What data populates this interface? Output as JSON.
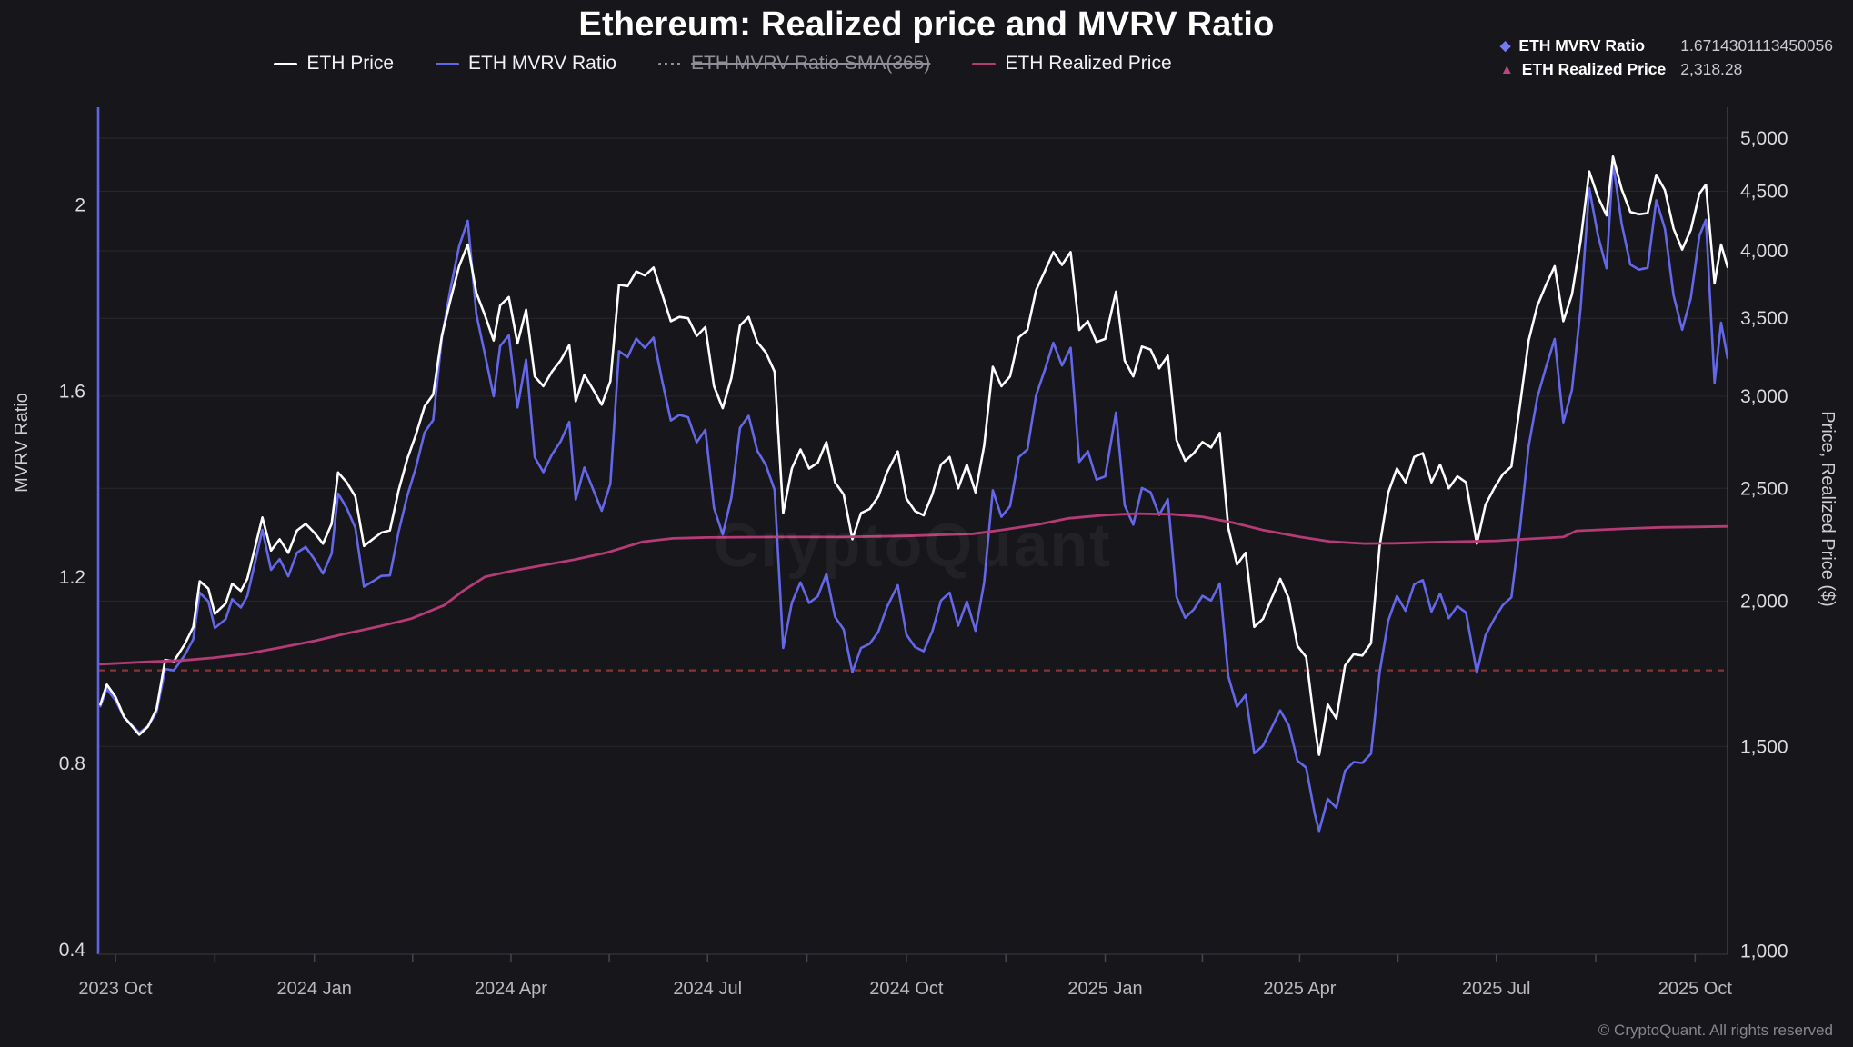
{
  "title": "Ethereum: Realized price and MVRV Ratio",
  "watermark": "CryptoQuant",
  "copyright": "© CryptoQuant. All rights reserved",
  "colors": {
    "background": "#17171b",
    "price_line": "#ffffff",
    "mvrv_line": "#6467e8",
    "realized_line": "#b53b76",
    "sma_disabled": "#8f8f98",
    "baseline_dashed": "#8a3333",
    "grid": "rgba(255,255,255,0.075)",
    "left_axis_line": "#6064e0",
    "right_axis_line": "#3f3f46",
    "bottom_axis_line": "#2e2e34",
    "tick_text": "#dcdce0",
    "x_tick_text": "#b9b9bd",
    "axis_title_text": "#cfcfd3",
    "readout_mvrv_icon": "#7879f1",
    "readout_realized_icon": "#b5487e"
  },
  "legend": {
    "items": [
      {
        "id": "eth-price",
        "label": "ETH Price",
        "color": "#ffffff",
        "style": "solid",
        "disabled": false
      },
      {
        "id": "eth-mvrv",
        "label": "ETH MVRV Ratio",
        "color": "#6467e8",
        "style": "solid",
        "disabled": false
      },
      {
        "id": "eth-mvrv-sma",
        "label": "ETH MVRV Ratio SMA(365)",
        "color": "#8f8f98",
        "style": "dotted",
        "disabled": true
      },
      {
        "id": "eth-realized",
        "label": "ETH Realized Price",
        "color": "#b53b76",
        "style": "solid",
        "disabled": false
      }
    ]
  },
  "readout": {
    "rows": [
      {
        "icon": "diamond-icon",
        "glyph": "◆",
        "color": "#7879f1",
        "label": "ETH MVRV Ratio",
        "value": "1.6714301113450056"
      },
      {
        "icon": "triangle-up-icon",
        "glyph": "▲",
        "color": "#b5487e",
        "label": "ETH Realized Price",
        "value": "2,318.28"
      }
    ]
  },
  "chart_data": {
    "type": "line",
    "title": "Ethereum: Realized price and MVRV Ratio",
    "legend_position": "top-center",
    "grid": "horizontal-right-axis-ticks",
    "x_axis": {
      "domain": [
        "2023-09-23",
        "2025-10-16"
      ],
      "ticks": [
        {
          "label": "2023 Oct",
          "date": "2023-10-01"
        },
        {
          "label": "2024 Jan",
          "date": "2024-01-01"
        },
        {
          "label": "2024 Apr",
          "date": "2024-04-01"
        },
        {
          "label": "2024 Jul",
          "date": "2024-07-01"
        },
        {
          "label": "2024 Oct",
          "date": "2024-10-01"
        },
        {
          "label": "2025 Jan",
          "date": "2025-01-01"
        },
        {
          "label": "2025 Apr",
          "date": "2025-04-01"
        },
        {
          "label": "2025 Jul",
          "date": "2025-07-01"
        },
        {
          "label": "2025 Oct",
          "date": "2025-10-01"
        }
      ]
    },
    "left_axis": {
      "label": "MVRV Ratio",
      "scale": "linear",
      "ticks": [
        2,
        1.6,
        1.2,
        0.8,
        0.4
      ],
      "domain": [
        0.39,
        2.21
      ]
    },
    "right_axis": {
      "label": "Price, Realized Price ($)",
      "scale": "log",
      "ticks": [
        5000,
        4500,
        4000,
        3500,
        3000,
        2500,
        2000,
        1500,
        1000
      ],
      "domain": [
        994,
        5315
      ]
    },
    "baseline": {
      "series": "ETH MVRV Ratio",
      "axis": "left",
      "value": 1.0,
      "style": "dashed"
    },
    "points_format": [
      "date",
      "eth_price_usd",
      "eth_mvrv_ratio"
    ],
    "price_and_mvrv": [
      [
        "2023-09-24",
        1630,
        0.923
      ],
      [
        "2023-09-27",
        1695,
        0.96
      ],
      [
        "2023-10-01",
        1655,
        0.936
      ],
      [
        "2023-10-05",
        1590,
        0.899
      ],
      [
        "2023-10-12",
        1535,
        0.866
      ],
      [
        "2023-10-16",
        1560,
        0.88
      ],
      [
        "2023-10-20",
        1615,
        0.91
      ],
      [
        "2023-10-24",
        1780,
        1.003
      ],
      [
        "2023-10-28",
        1775,
        1.0
      ],
      [
        "2023-11-02",
        1835,
        1.032
      ],
      [
        "2023-11-06",
        1900,
        1.067
      ],
      [
        "2023-11-09",
        2080,
        1.167
      ],
      [
        "2023-11-13",
        2050,
        1.148
      ],
      [
        "2023-11-16",
        1950,
        1.091
      ],
      [
        "2023-11-21",
        1990,
        1.11
      ],
      [
        "2023-11-24",
        2070,
        1.153
      ],
      [
        "2023-11-28",
        2040,
        1.135
      ],
      [
        "2023-12-01",
        2090,
        1.16
      ],
      [
        "2023-12-05",
        2240,
        1.24
      ],
      [
        "2023-12-08",
        2360,
        1.302
      ],
      [
        "2023-12-12",
        2210,
        1.216
      ],
      [
        "2023-12-16",
        2260,
        1.239
      ],
      [
        "2023-12-20",
        2200,
        1.202
      ],
      [
        "2023-12-24",
        2300,
        1.253
      ],
      [
        "2023-12-28",
        2330,
        1.265
      ],
      [
        "2024-01-01",
        2290,
        1.239
      ],
      [
        "2024-01-05",
        2240,
        1.208
      ],
      [
        "2024-01-09",
        2330,
        1.251
      ],
      [
        "2024-01-12",
        2580,
        1.38
      ],
      [
        "2024-01-16",
        2530,
        1.349
      ],
      [
        "2024-01-20",
        2460,
        1.306
      ],
      [
        "2024-01-24",
        2230,
        1.18
      ],
      [
        "2024-01-28",
        2260,
        1.191
      ],
      [
        "2024-02-01",
        2290,
        1.203
      ],
      [
        "2024-02-05",
        2300,
        1.204
      ],
      [
        "2024-02-09",
        2490,
        1.298
      ],
      [
        "2024-02-13",
        2650,
        1.375
      ],
      [
        "2024-02-17",
        2780,
        1.436
      ],
      [
        "2024-02-21",
        2940,
        1.511
      ],
      [
        "2024-02-25",
        3010,
        1.538
      ],
      [
        "2024-02-29",
        3380,
        1.714
      ],
      [
        "2024-03-04",
        3630,
        1.82
      ],
      [
        "2024-03-08",
        3880,
        1.911
      ],
      [
        "2024-03-12",
        4050,
        1.966
      ],
      [
        "2024-03-16",
        3680,
        1.765
      ],
      [
        "2024-03-20",
        3520,
        1.678
      ],
      [
        "2024-03-24",
        3350,
        1.589
      ],
      [
        "2024-03-27",
        3590,
        1.697
      ],
      [
        "2024-03-31",
        3650,
        1.72
      ],
      [
        "2024-04-04",
        3330,
        1.565
      ],
      [
        "2024-04-08",
        3560,
        1.668
      ],
      [
        "2024-04-12",
        3120,
        1.458
      ],
      [
        "2024-04-16",
        3060,
        1.426
      ],
      [
        "2024-04-20",
        3150,
        1.464
      ],
      [
        "2024-04-24",
        3220,
        1.492
      ],
      [
        "2024-04-28",
        3320,
        1.534
      ],
      [
        "2024-05-01",
        2970,
        1.367
      ],
      [
        "2024-05-05",
        3130,
        1.436
      ],
      [
        "2024-05-09",
        3040,
        1.389
      ],
      [
        "2024-05-13",
        2950,
        1.343
      ],
      [
        "2024-05-17",
        3090,
        1.401
      ],
      [
        "2024-05-21",
        3740,
        1.686
      ],
      [
        "2024-05-25",
        3730,
        1.673
      ],
      [
        "2024-05-29",
        3840,
        1.713
      ],
      [
        "2024-06-02",
        3810,
        1.693
      ],
      [
        "2024-06-06",
        3870,
        1.715
      ],
      [
        "2024-06-10",
        3670,
        1.622
      ],
      [
        "2024-06-14",
        3480,
        1.537
      ],
      [
        "2024-06-18",
        3510,
        1.549
      ],
      [
        "2024-06-22",
        3500,
        1.544
      ],
      [
        "2024-06-26",
        3380,
        1.49
      ],
      [
        "2024-06-30",
        3440,
        1.517
      ],
      [
        "2024-07-04",
        3060,
        1.349
      ],
      [
        "2024-07-08",
        2930,
        1.292
      ],
      [
        "2024-07-12",
        3110,
        1.371
      ],
      [
        "2024-07-16",
        3450,
        1.521
      ],
      [
        "2024-07-20",
        3510,
        1.547
      ],
      [
        "2024-07-24",
        3340,
        1.472
      ],
      [
        "2024-07-28",
        3270,
        1.441
      ],
      [
        "2024-08-01",
        3150,
        1.388
      ],
      [
        "2024-08-05",
        2380,
        1.048
      ],
      [
        "2024-08-09",
        2600,
        1.145
      ],
      [
        "2024-08-13",
        2700,
        1.189
      ],
      [
        "2024-08-17",
        2600,
        1.145
      ],
      [
        "2024-08-21",
        2630,
        1.159
      ],
      [
        "2024-08-25",
        2740,
        1.207
      ],
      [
        "2024-08-29",
        2530,
        1.115
      ],
      [
        "2024-09-02",
        2470,
        1.088
      ],
      [
        "2024-09-06",
        2260,
        0.996
      ],
      [
        "2024-09-10",
        2380,
        1.048
      ],
      [
        "2024-09-14",
        2400,
        1.057
      ],
      [
        "2024-09-18",
        2460,
        1.083
      ],
      [
        "2024-09-22",
        2580,
        1.136
      ],
      [
        "2024-09-27",
        2690,
        1.183
      ],
      [
        "2024-10-01",
        2450,
        1.077
      ],
      [
        "2024-10-05",
        2390,
        1.05
      ],
      [
        "2024-10-09",
        2370,
        1.041
      ],
      [
        "2024-10-13",
        2470,
        1.084
      ],
      [
        "2024-10-17",
        2620,
        1.15
      ],
      [
        "2024-10-21",
        2660,
        1.167
      ],
      [
        "2024-10-25",
        2500,
        1.096
      ],
      [
        "2024-10-29",
        2620,
        1.148
      ],
      [
        "2024-11-02",
        2480,
        1.085
      ],
      [
        "2024-11-06",
        2720,
        1.189
      ],
      [
        "2024-11-10",
        3180,
        1.387
      ],
      [
        "2024-11-14",
        3060,
        1.33
      ],
      [
        "2024-11-18",
        3120,
        1.353
      ],
      [
        "2024-11-22",
        3370,
        1.458
      ],
      [
        "2024-11-26",
        3420,
        1.475
      ],
      [
        "2024-11-30",
        3700,
        1.591
      ],
      [
        "2024-12-04",
        3840,
        1.645
      ],
      [
        "2024-12-08",
        3990,
        1.704
      ],
      [
        "2024-12-12",
        3890,
        1.655
      ],
      [
        "2024-12-16",
        3990,
        1.693
      ],
      [
        "2024-12-20",
        3420,
        1.448
      ],
      [
        "2024-12-24",
        3480,
        1.471
      ],
      [
        "2024-12-28",
        3340,
        1.41
      ],
      [
        "2025-01-01",
        3360,
        1.417
      ],
      [
        "2025-01-06",
        3690,
        1.554
      ],
      [
        "2025-01-10",
        3220,
        1.355
      ],
      [
        "2025-01-14",
        3120,
        1.313
      ],
      [
        "2025-01-18",
        3310,
        1.392
      ],
      [
        "2025-01-22",
        3290,
        1.383
      ],
      [
        "2025-01-26",
        3170,
        1.334
      ],
      [
        "2025-01-30",
        3250,
        1.368
      ],
      [
        "2025-02-03",
        2750,
        1.158
      ],
      [
        "2025-02-07",
        2640,
        1.113
      ],
      [
        "2025-02-11",
        2680,
        1.131
      ],
      [
        "2025-02-15",
        2740,
        1.16
      ],
      [
        "2025-02-19",
        2710,
        1.15
      ],
      [
        "2025-02-23",
        2790,
        1.187
      ],
      [
        "2025-02-27",
        2310,
        0.987
      ],
      [
        "2025-03-03",
        2150,
        0.922
      ],
      [
        "2025-03-07",
        2200,
        0.947
      ],
      [
        "2025-03-11",
        1900,
        0.822
      ],
      [
        "2025-03-15",
        1930,
        0.838
      ],
      [
        "2025-03-19",
        2010,
        0.876
      ],
      [
        "2025-03-23",
        2090,
        0.914
      ],
      [
        "2025-03-27",
        2010,
        0.882
      ],
      [
        "2025-03-31",
        1830,
        0.806
      ],
      [
        "2025-04-04",
        1790,
        0.791
      ],
      [
        "2025-04-08",
        1560,
        0.691
      ],
      [
        "2025-04-10",
        1475,
        0.655
      ],
      [
        "2025-04-14",
        1630,
        0.724
      ],
      [
        "2025-04-18",
        1585,
        0.705
      ],
      [
        "2025-04-22",
        1760,
        0.784
      ],
      [
        "2025-04-26",
        1800,
        0.803
      ],
      [
        "2025-04-30",
        1795,
        0.801
      ],
      [
        "2025-05-04",
        1840,
        0.821
      ],
      [
        "2025-05-08",
        2230,
        0.996
      ],
      [
        "2025-05-12",
        2480,
        1.107
      ],
      [
        "2025-05-16",
        2600,
        1.16
      ],
      [
        "2025-05-20",
        2530,
        1.128
      ],
      [
        "2025-05-24",
        2660,
        1.185
      ],
      [
        "2025-05-28",
        2680,
        1.194
      ],
      [
        "2025-06-01",
        2530,
        1.126
      ],
      [
        "2025-06-05",
        2620,
        1.165
      ],
      [
        "2025-06-09",
        2500,
        1.112
      ],
      [
        "2025-06-13",
        2560,
        1.138
      ],
      [
        "2025-06-17",
        2530,
        1.124
      ],
      [
        "2025-06-22",
        2240,
        0.995
      ],
      [
        "2025-06-26",
        2420,
        1.075
      ],
      [
        "2025-06-30",
        2500,
        1.11
      ],
      [
        "2025-07-04",
        2570,
        1.14
      ],
      [
        "2025-07-08",
        2610,
        1.157
      ],
      [
        "2025-07-12",
        2950,
        1.306
      ],
      [
        "2025-07-16",
        3350,
        1.482
      ],
      [
        "2025-07-20",
        3590,
        1.587
      ],
      [
        "2025-07-24",
        3740,
        1.652
      ],
      [
        "2025-07-28",
        3880,
        1.712
      ],
      [
        "2025-08-01",
        3480,
        1.533
      ],
      [
        "2025-08-05",
        3670,
        1.603
      ],
      [
        "2025-08-09",
        4080,
        1.778
      ],
      [
        "2025-08-13",
        4680,
        2.036
      ],
      [
        "2025-08-17",
        4450,
        1.935
      ],
      [
        "2025-08-21",
        4290,
        1.864
      ],
      [
        "2025-08-24",
        4820,
        2.092
      ],
      [
        "2025-08-28",
        4520,
        1.96
      ],
      [
        "2025-09-01",
        4320,
        1.872
      ],
      [
        "2025-09-05",
        4300,
        1.861
      ],
      [
        "2025-09-09",
        4310,
        1.865
      ],
      [
        "2025-09-13",
        4650,
        2.01
      ],
      [
        "2025-09-17",
        4510,
        1.949
      ],
      [
        "2025-09-21",
        4180,
        1.806
      ],
      [
        "2025-09-25",
        4010,
        1.732
      ],
      [
        "2025-09-29",
        4170,
        1.8
      ],
      [
        "2025-10-03",
        4480,
        1.934
      ],
      [
        "2025-10-06",
        4560,
        1.968
      ],
      [
        "2025-10-10",
        3750,
        1.618
      ],
      [
        "2025-10-13",
        4050,
        1.747
      ],
      [
        "2025-10-16",
        3874,
        1.671
      ]
    ],
    "realized_price": [
      [
        "2023-09-24",
        1765
      ],
      [
        "2023-10-15",
        1773
      ],
      [
        "2023-11-01",
        1778
      ],
      [
        "2023-11-15",
        1787
      ],
      [
        "2023-12-01",
        1802
      ],
      [
        "2023-12-15",
        1822
      ],
      [
        "2024-01-01",
        1848
      ],
      [
        "2024-01-15",
        1874
      ],
      [
        "2024-02-01",
        1904
      ],
      [
        "2024-02-15",
        1932
      ],
      [
        "2024-03-01",
        1983
      ],
      [
        "2024-03-10",
        2042
      ],
      [
        "2024-03-20",
        2098
      ],
      [
        "2024-04-01",
        2122
      ],
      [
        "2024-04-15",
        2145
      ],
      [
        "2024-05-01",
        2172
      ],
      [
        "2024-05-15",
        2200
      ],
      [
        "2024-06-01",
        2249
      ],
      [
        "2024-06-15",
        2264
      ],
      [
        "2024-07-01",
        2268
      ],
      [
        "2024-08-01",
        2270
      ],
      [
        "2024-09-01",
        2270
      ],
      [
        "2024-10-01",
        2275
      ],
      [
        "2024-11-01",
        2285
      ],
      [
        "2024-11-15",
        2303
      ],
      [
        "2024-12-01",
        2327
      ],
      [
        "2024-12-15",
        2356
      ],
      [
        "2025-01-01",
        2371
      ],
      [
        "2025-01-15",
        2378
      ],
      [
        "2025-02-01",
        2375
      ],
      [
        "2025-02-15",
        2363
      ],
      [
        "2025-03-01",
        2336
      ],
      [
        "2025-03-15",
        2302
      ],
      [
        "2025-04-01",
        2271
      ],
      [
        "2025-04-15",
        2250
      ],
      [
        "2025-05-01",
        2241
      ],
      [
        "2025-05-15",
        2242
      ],
      [
        "2025-06-01",
        2247
      ],
      [
        "2025-06-15",
        2250
      ],
      [
        "2025-07-01",
        2253
      ],
      [
        "2025-07-15",
        2261
      ],
      [
        "2025-08-01",
        2270
      ],
      [
        "2025-08-07",
        2298
      ],
      [
        "2025-09-01",
        2309
      ],
      [
        "2025-09-15",
        2314
      ],
      [
        "2025-10-01",
        2316
      ],
      [
        "2025-10-16",
        2318.28
      ]
    ],
    "series_names": [
      "ETH Price",
      "ETH MVRV Ratio",
      "ETH MVRV Ratio SMA(365)",
      "ETH Realized Price"
    ],
    "hidden_series": [
      "ETH MVRV Ratio SMA(365)"
    ]
  }
}
